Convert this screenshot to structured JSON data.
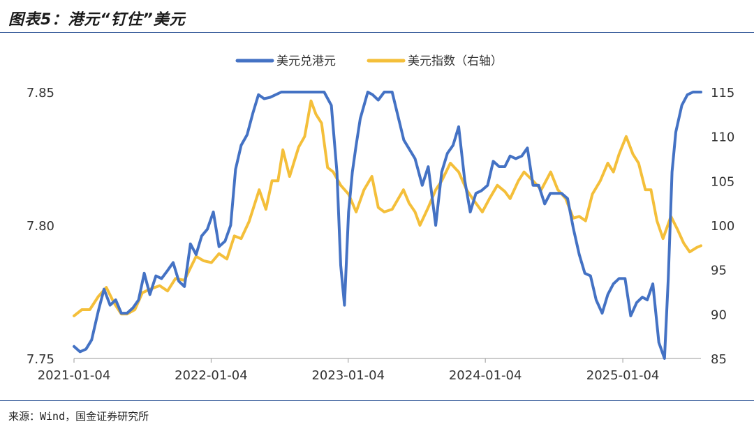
{
  "figure": {
    "title": "图表5：港元“钉住”美元",
    "source": "来源：Wind，国金证券研究所"
  },
  "colors": {
    "usdhkd": "#4472c4",
    "dxy": "#f4bf3a"
  },
  "chart_data": {
    "type": "line",
    "title": "",
    "x_type": "date",
    "x_ticks": [
      "2021-01-04",
      "2022-01-04",
      "2023-01-04",
      "2024-01-04",
      "2025-01-04"
    ],
    "x_range": [
      "2021-01-04",
      "2025-07-31"
    ],
    "legend_position": "top-center",
    "grid": false,
    "y_left": {
      "label": "",
      "range": [
        7.75,
        7.85
      ],
      "ticks": [
        7.75,
        7.8,
        7.85
      ],
      "tick_labels": [
        "7.75",
        "7.80",
        "7.85"
      ]
    },
    "y_right": {
      "label": "",
      "range": [
        85,
        115
      ],
      "ticks": [
        85,
        90,
        95,
        100,
        105,
        110,
        115
      ],
      "tick_labels": [
        "85",
        "90",
        "95",
        "100",
        "105",
        "110",
        "115"
      ]
    },
    "series": [
      {
        "name": "美元兑港元",
        "axis": "left",
        "x": [
          "2021-01-04",
          "2021-01-20",
          "2021-02-05",
          "2021-02-20",
          "2021-03-10",
          "2021-03-25",
          "2021-04-10",
          "2021-04-25",
          "2021-05-10",
          "2021-05-25",
          "2021-06-10",
          "2021-06-25",
          "2021-07-10",
          "2021-07-25",
          "2021-08-10",
          "2021-08-25",
          "2021-09-10",
          "2021-09-25",
          "2021-10-10",
          "2021-10-25",
          "2021-11-10",
          "2021-11-25",
          "2021-12-10",
          "2021-12-25",
          "2022-01-10",
          "2022-01-25",
          "2022-02-10",
          "2022-02-25",
          "2022-03-10",
          "2022-03-25",
          "2022-04-10",
          "2022-04-25",
          "2022-05-10",
          "2022-05-25",
          "2022-06-10",
          "2022-06-25",
          "2022-07-10",
          "2022-08-01",
          "2022-09-01",
          "2022-10-01",
          "2022-11-01",
          "2022-11-20",
          "2022-12-05",
          "2022-12-15",
          "2022-12-25",
          "2023-01-05",
          "2023-01-15",
          "2023-01-25",
          "2023-02-05",
          "2023-02-15",
          "2023-02-25",
          "2023-03-10",
          "2023-03-25",
          "2023-04-10",
          "2023-05-01",
          "2023-06-01",
          "2023-07-01",
          "2023-07-20",
          "2023-08-05",
          "2023-08-25",
          "2023-09-10",
          "2023-09-25",
          "2023-10-10",
          "2023-10-25",
          "2023-11-10",
          "2023-11-25",
          "2023-12-10",
          "2023-12-25",
          "2024-01-10",
          "2024-01-25",
          "2024-02-10",
          "2024-02-25",
          "2024-03-10",
          "2024-03-25",
          "2024-04-10",
          "2024-04-25",
          "2024-05-10",
          "2024-05-25",
          "2024-06-10",
          "2024-06-25",
          "2024-07-10",
          "2024-07-25",
          "2024-08-10",
          "2024-08-25",
          "2024-09-10",
          "2024-09-25",
          "2024-10-10",
          "2024-10-25",
          "2024-11-10",
          "2024-11-25",
          "2024-12-10",
          "2024-12-25",
          "2025-01-10",
          "2025-01-25",
          "2025-02-10",
          "2025-02-25",
          "2025-03-10",
          "2025-03-25",
          "2025-04-10",
          "2025-04-25",
          "2025-05-05",
          "2025-05-15",
          "2025-05-25",
          "2025-06-10",
          "2025-06-25",
          "2025-07-10",
          "2025-07-31"
        ],
        "values": [
          7.7545,
          7.7525,
          7.7535,
          7.757,
          7.768,
          7.776,
          7.77,
          7.772,
          7.767,
          7.767,
          7.769,
          7.772,
          7.782,
          7.774,
          7.781,
          7.78,
          7.783,
          7.786,
          7.779,
          7.777,
          7.793,
          7.789,
          7.796,
          7.7985,
          7.805,
          7.792,
          7.794,
          7.8,
          7.821,
          7.83,
          7.834,
          7.842,
          7.849,
          7.8475,
          7.848,
          7.849,
          7.85,
          7.85,
          7.85,
          7.85,
          7.85,
          7.845,
          7.82,
          7.785,
          7.77,
          7.805,
          7.82,
          7.83,
          7.84,
          7.845,
          7.85,
          7.849,
          7.847,
          7.85,
          7.85,
          7.832,
          7.825,
          7.815,
          7.822,
          7.8,
          7.82,
          7.827,
          7.83,
          7.837,
          7.817,
          7.805,
          7.812,
          7.813,
          7.815,
          7.824,
          7.822,
          7.822,
          7.826,
          7.825,
          7.826,
          7.829,
          7.815,
          7.815,
          7.808,
          7.812,
          7.812,
          7.812,
          7.81,
          7.799,
          7.789,
          7.782,
          7.781,
          7.772,
          7.767,
          7.774,
          7.778,
          7.78,
          7.78,
          7.766,
          7.771,
          7.773,
          7.772,
          7.778,
          7.756,
          7.75,
          7.78,
          7.82,
          7.835,
          7.845,
          7.849,
          7.85,
          7.85
        ]
      },
      {
        "name": "美元指数（右轴）",
        "axis": "right",
        "x": [
          "2021-01-04",
          "2021-01-25",
          "2021-02-15",
          "2021-03-10",
          "2021-03-31",
          "2021-04-20",
          "2021-05-10",
          "2021-05-25",
          "2021-06-15",
          "2021-07-05",
          "2021-07-25",
          "2021-08-20",
          "2021-09-10",
          "2021-10-01",
          "2021-10-25",
          "2021-11-25",
          "2021-12-15",
          "2022-01-05",
          "2022-01-25",
          "2022-02-15",
          "2022-03-07",
          "2022-03-25",
          "2022-04-15",
          "2022-05-12",
          "2022-05-30",
          "2022-06-15",
          "2022-07-01",
          "2022-07-14",
          "2022-08-01",
          "2022-08-25",
          "2022-09-10",
          "2022-09-27",
          "2022-10-10",
          "2022-10-25",
          "2022-11-10",
          "2022-11-25",
          "2022-12-15",
          "2023-01-05",
          "2023-01-25",
          "2023-02-15",
          "2023-03-08",
          "2023-03-25",
          "2023-04-10",
          "2023-05-01",
          "2023-05-31",
          "2023-06-15",
          "2023-07-01",
          "2023-07-14",
          "2023-08-05",
          "2023-08-25",
          "2023-09-10",
          "2023-10-03",
          "2023-10-25",
          "2023-11-15",
          "2023-12-01",
          "2023-12-27",
          "2024-01-15",
          "2024-02-05",
          "2024-02-25",
          "2024-03-10",
          "2024-04-01",
          "2024-04-16",
          "2024-05-10",
          "2024-06-01",
          "2024-06-26",
          "2024-07-15",
          "2024-08-05",
          "2024-08-25",
          "2024-09-10",
          "2024-09-27",
          "2024-10-15",
          "2024-11-05",
          "2024-11-25",
          "2024-12-10",
          "2024-12-25",
          "2025-01-13",
          "2025-01-31",
          "2025-02-15",
          "2025-03-05",
          "2025-03-20",
          "2025-04-05",
          "2025-04-21",
          "2025-05-12",
          "2025-05-30",
          "2025-06-15",
          "2025-07-01",
          "2025-07-20",
          "2025-07-31"
        ],
        "values": [
          89.8,
          90.5,
          90.5,
          92.0,
          93.0,
          91.3,
          90.0,
          90.0,
          90.5,
          92.4,
          92.8,
          93.2,
          92.6,
          94.0,
          93.8,
          96.5,
          96.0,
          95.8,
          96.8,
          96.2,
          98.8,
          98.5,
          100.4,
          104.0,
          101.8,
          105.0,
          105.0,
          108.5,
          105.5,
          108.8,
          110.0,
          114.0,
          112.5,
          111.5,
          106.5,
          106.0,
          104.5,
          103.5,
          101.5,
          104.0,
          105.5,
          102.0,
          101.5,
          101.8,
          104.0,
          102.5,
          101.5,
          100.0,
          102.0,
          104.0,
          105.0,
          107.0,
          106.0,
          104.0,
          103.0,
          101.5,
          103.0,
          104.5,
          103.8,
          103.0,
          105.0,
          106.0,
          105.0,
          104.0,
          106.0,
          104.0,
          103.0,
          100.8,
          101.0,
          100.5,
          103.5,
          105.0,
          107.0,
          106.0,
          108.0,
          110.0,
          108.0,
          107.0,
          104.0,
          104.0,
          100.5,
          98.5,
          101.0,
          99.5,
          98.0,
          97.0,
          97.5,
          97.7
        ]
      }
    ]
  }
}
